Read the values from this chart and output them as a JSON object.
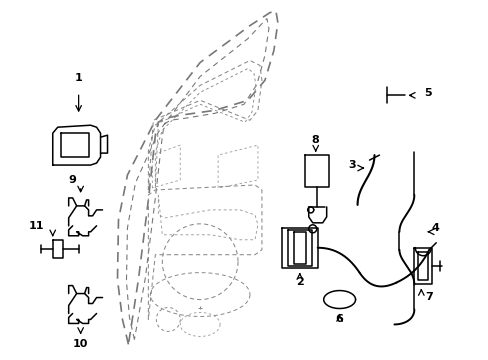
{
  "background_color": "#ffffff",
  "line_color": "#000000",
  "dash_color": "#666666",
  "fig_width": 4.89,
  "fig_height": 3.6,
  "dpi": 100
}
